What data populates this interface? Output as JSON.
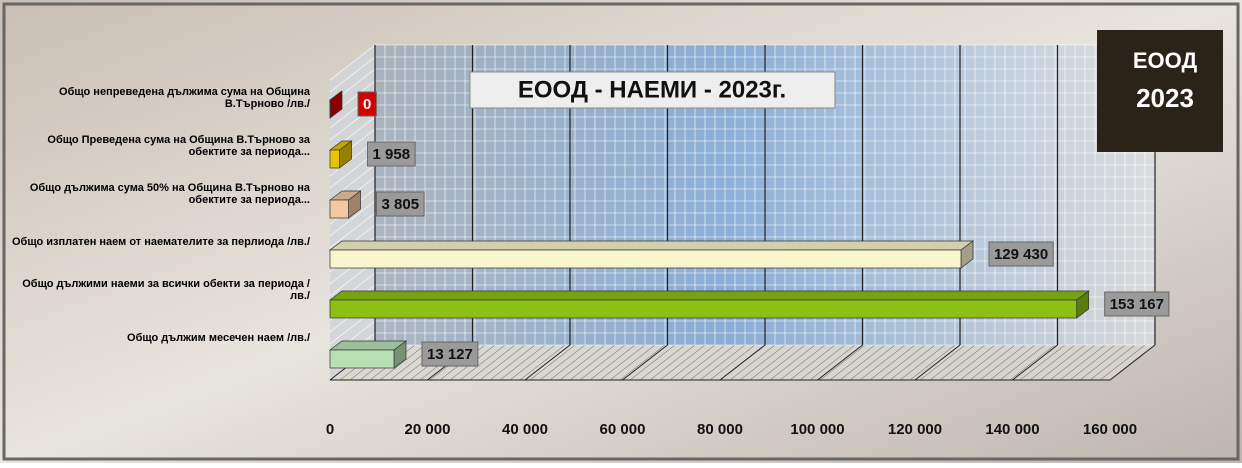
{
  "chart_data": {
    "type": "bar",
    "orientation": "horizontal",
    "title": "ЕООД - НАЕМИ - 2023г.",
    "logo": {
      "line1": "ЕООД",
      "line2": "2023"
    },
    "categories": [
      "Общо непреведена дължима сума на Община В.Търново /лв./",
      "Общо Преведена сума на Община В.Търново за обектите за периода...",
      "Общо дължима сума 50% на Община В.Търново на обектите за периода...",
      "Общо изплатен наем от наемателите за перлиода /лв./",
      "Общо дължими наеми за всички обекти за периода /лв./",
      "Общо дължим месечен наем /лв./"
    ],
    "values": [
      0,
      1958,
      3805,
      129430,
      153167,
      13127
    ],
    "value_labels": [
      "0",
      "1 958",
      "3 805",
      "129 430",
      "153 167",
      "13 127"
    ],
    "colors": [
      "#d40000",
      "#e8c400",
      "#f2c9a0",
      "#f8f4cc",
      "#8cc014",
      "#b8e0b4"
    ],
    "xlim": [
      0,
      160000
    ],
    "xticks": [
      0,
      {
        "value": 20000,
        "label": "20 000"
      },
      {
        "value": 40000,
        "label": "40 000"
      },
      {
        "value": 60000,
        "label": "60 000"
      },
      {
        "value": 80000,
        "label": "80 000"
      },
      {
        "value": 100000,
        "label": "100 000"
      },
      {
        "value": 120000,
        "label": "120 000"
      },
      {
        "value": 140000,
        "label": "140 000"
      },
      {
        "value": 160000,
        "label": "160 000"
      }
    ],
    "grid": true
  }
}
